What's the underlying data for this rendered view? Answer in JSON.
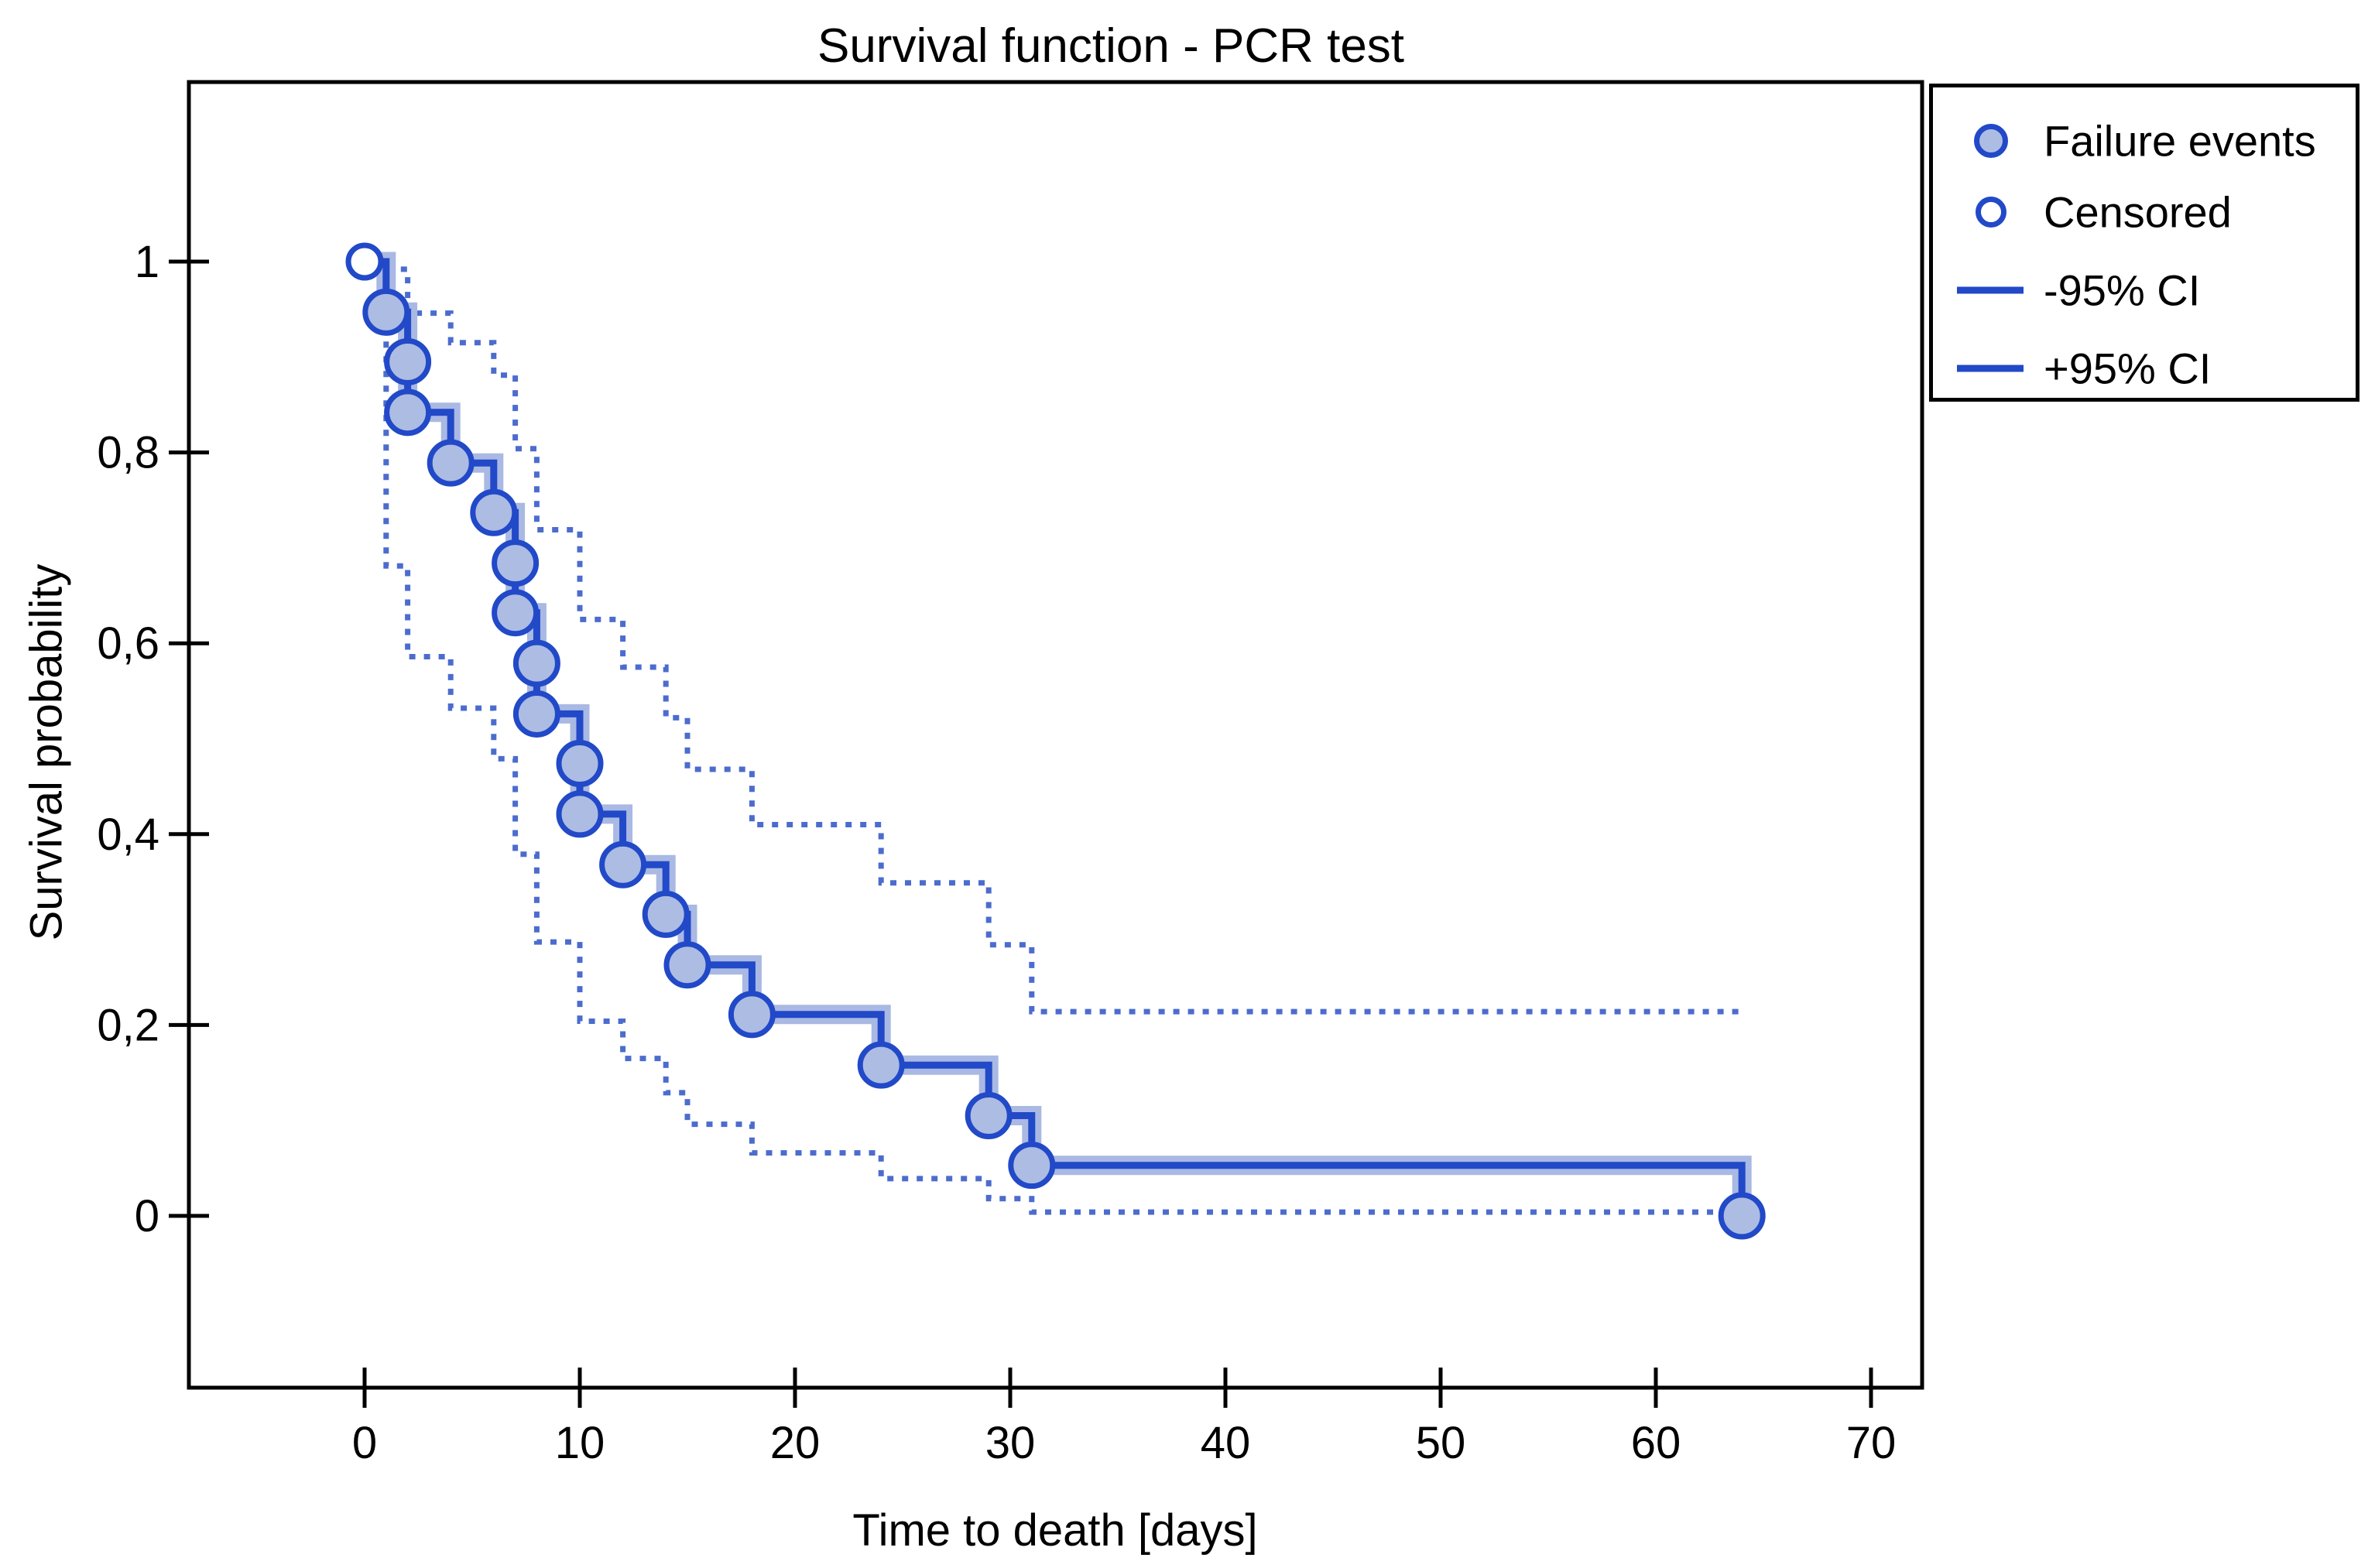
{
  "title": "Survival function - PCR test",
  "axes": {
    "x": {
      "label": "Time to death [days]",
      "tick_labels": [
        "0",
        "10",
        "20",
        "30",
        "40",
        "50",
        "60",
        "70"
      ]
    },
    "y": {
      "label": "Survival probability",
      "tick_labels": [
        "1",
        "0,8",
        "0,6",
        "0,4",
        "0,2",
        "0"
      ]
    }
  },
  "legend": {
    "items": [
      {
        "icon": "filled-circle-icon",
        "label": "Failure events"
      },
      {
        "icon": "open-circle-icon",
        "label": "Censored"
      },
      {
        "icon": "ci-line-icon",
        "label": "-95% CI"
      },
      {
        "icon": "ci-line-icon",
        "label": "+95% CI"
      }
    ]
  },
  "colors": {
    "curve": "#2149c8",
    "curve_halo": "#a9b9e3",
    "marker_fill": "#adbce3",
    "ci_line": "#4c6ccd",
    "frame": "#000000",
    "text": "#000000",
    "background": "#ffffff"
  },
  "chart_data": {
    "type": "line",
    "subtype": "kaplan-meier-step",
    "title": "Survival function - PCR test",
    "xlabel": "Time to death [days]",
    "ylabel": "Survival probability",
    "xlim": [
      -8.2,
      72.5
    ],
    "ylim": [
      -0.28,
      1.19
    ],
    "grid": false,
    "legend_position": "outside-top-right",
    "x_ticks": [
      0,
      10,
      20,
      30,
      40,
      50,
      60,
      70
    ],
    "y_ticks": [
      1,
      0.8,
      0.6,
      0.4,
      0.2,
      0
    ],
    "y_tick_labels": [
      "1",
      "0,8",
      "0,6",
      "0,4",
      "0,2",
      "0"
    ],
    "series": [
      {
        "name": "Survival function",
        "style": "solid-step",
        "points": [
          [
            0,
            1
          ],
          [
            1,
            0.947
          ],
          [
            2,
            0.842
          ],
          [
            4,
            0.789
          ],
          [
            6,
            0.737
          ],
          [
            7,
            0.632
          ],
          [
            8,
            0.526
          ],
          [
            10,
            0.421
          ],
          [
            12,
            0.368
          ],
          [
            14,
            0.316
          ],
          [
            15,
            0.263
          ],
          [
            18,
            0.211
          ],
          [
            24,
            0.158
          ],
          [
            29,
            0.105
          ],
          [
            31,
            0.053
          ],
          [
            64,
            0
          ]
        ]
      },
      {
        "name": "+95% CI",
        "style": "dotted-step",
        "points": [
          [
            1,
            0.992
          ],
          [
            2,
            0.946
          ],
          [
            4,
            0.915
          ],
          [
            6,
            0.881
          ],
          [
            7,
            0.804
          ],
          [
            8,
            0.719
          ],
          [
            10,
            0.625
          ],
          [
            12,
            0.575
          ],
          [
            14,
            0.522
          ],
          [
            15,
            0.468
          ],
          [
            18,
            0.41
          ],
          [
            24,
            0.349
          ],
          [
            29,
            0.284
          ],
          [
            31,
            0.214
          ],
          [
            64,
            0.214
          ]
        ]
      },
      {
        "name": "-95% CI",
        "style": "dotted-step",
        "points": [
          [
            1,
            0.947
          ],
          [
            1,
            0.681
          ],
          [
            2,
            0.586
          ],
          [
            4,
            0.532
          ],
          [
            6,
            0.479
          ],
          [
            7,
            0.379
          ],
          [
            8,
            0.287
          ],
          [
            10,
            0.204
          ],
          [
            12,
            0.165
          ],
          [
            14,
            0.129
          ],
          [
            15,
            0.096
          ],
          [
            18,
            0.066
          ],
          [
            24,
            0.039
          ],
          [
            29,
            0.018
          ],
          [
            31,
            0.004
          ],
          [
            64,
            0.004
          ]
        ]
      }
    ],
    "failure_events": [
      [
        1,
        0.947
      ],
      [
        2,
        0.895
      ],
      [
        2,
        0.842
      ],
      [
        4,
        0.789
      ],
      [
        6,
        0.737
      ],
      [
        7,
        0.684
      ],
      [
        7,
        0.632
      ],
      [
        8,
        0.579
      ],
      [
        8,
        0.526
      ],
      [
        10,
        0.474
      ],
      [
        10,
        0.421
      ],
      [
        12,
        0.368
      ],
      [
        14,
        0.316
      ],
      [
        15,
        0.263
      ],
      [
        18,
        0.211
      ],
      [
        24,
        0.158
      ],
      [
        29,
        0.105
      ],
      [
        31,
        0.053
      ],
      [
        64,
        0
      ]
    ],
    "censored": [
      [
        0,
        1
      ]
    ]
  }
}
